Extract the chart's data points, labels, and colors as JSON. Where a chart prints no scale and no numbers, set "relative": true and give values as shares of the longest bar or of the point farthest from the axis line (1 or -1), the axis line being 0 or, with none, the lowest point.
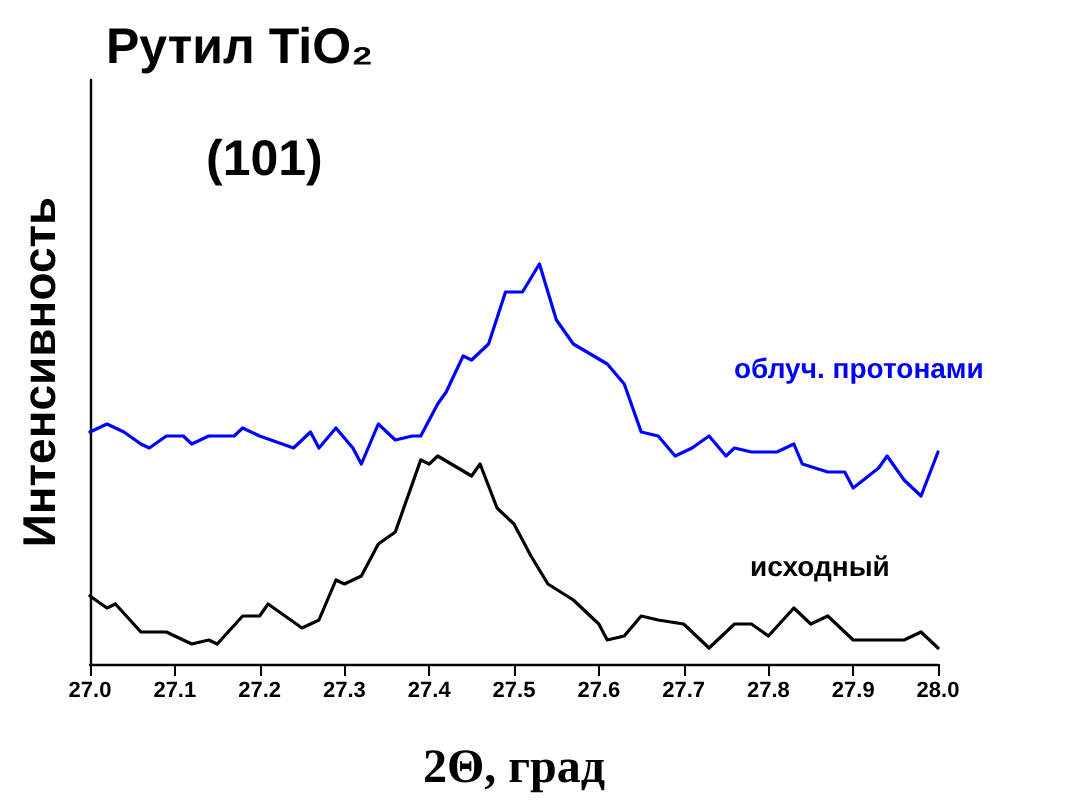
{
  "chart_data": {
    "type": "line",
    "title": "Рутил TiO₂",
    "subtitle": "(101)",
    "xlabel": "2Θ, град",
    "ylabel": "Интенсивность",
    "relative": true,
    "xlim": [
      27,
      28
    ],
    "xticks": [
      {
        "value": 27,
        "label": "27.0"
      },
      {
        "value": 27.1,
        "label": "27.1"
      },
      {
        "value": 27.2,
        "label": "27.2"
      },
      {
        "value": 27.3,
        "label": "27.3"
      },
      {
        "value": 27.4,
        "label": "27.4"
      },
      {
        "value": 27.5,
        "label": "27.5"
      },
      {
        "value": 27.6,
        "label": "27.6"
      },
      {
        "value": 27.7,
        "label": "27.7"
      },
      {
        "value": 27.8,
        "label": "27.8"
      },
      {
        "value": 27.9,
        "label": "27.9"
      },
      {
        "value": 28,
        "label": "28.0"
      }
    ],
    "grid": false,
    "legend": false,
    "marker": "none",
    "line_style": "solid",
    "series": [
      {
        "name": "облуч. протонами",
        "color": "#0000ff",
        "x": [
          27.0,
          27.02,
          27.04,
          27.06,
          27.07,
          27.09,
          27.11,
          27.12,
          27.14,
          27.17,
          27.18,
          27.2,
          27.24,
          27.26,
          27.27,
          27.29,
          27.31,
          27.32,
          27.34,
          27.36,
          27.38,
          27.39,
          27.41,
          27.42,
          27.44,
          27.45,
          27.47,
          27.49,
          27.51,
          27.53,
          27.55,
          27.57,
          27.61,
          27.63,
          27.65,
          27.67,
          27.69,
          27.71,
          27.73,
          27.75,
          27.76,
          27.78,
          27.81,
          27.83,
          27.84,
          27.87,
          27.89,
          27.9,
          27.93,
          27.94,
          27.96,
          27.98,
          28.0
        ],
        "values": [
          0.58,
          0.6,
          0.58,
          0.55,
          0.54,
          0.57,
          0.57,
          0.55,
          0.57,
          0.57,
          0.59,
          0.57,
          0.54,
          0.58,
          0.54,
          0.59,
          0.54,
          0.5,
          0.6,
          0.56,
          0.57,
          0.57,
          0.65,
          0.68,
          0.77,
          0.76,
          0.8,
          0.93,
          0.93,
          1.0,
          0.86,
          0.8,
          0.75,
          0.7,
          0.58,
          0.57,
          0.52,
          0.54,
          0.57,
          0.52,
          0.54,
          0.53,
          0.53,
          0.55,
          0.5,
          0.48,
          0.48,
          0.44,
          0.49,
          0.52,
          0.46,
          0.42,
          0.53
        ]
      },
      {
        "name": "исходный",
        "color": "#000000",
        "x": [
          27.0,
          27.02,
          27.03,
          27.06,
          27.09,
          27.12,
          27.14,
          27.15,
          27.18,
          27.2,
          27.21,
          27.25,
          27.27,
          27.29,
          27.3,
          27.32,
          27.34,
          27.36,
          27.39,
          27.4,
          27.41,
          27.45,
          27.46,
          27.48,
          27.5,
          27.52,
          27.54,
          27.57,
          27.6,
          27.61,
          27.63,
          27.65,
          27.67,
          27.7,
          27.73,
          27.76,
          27.78,
          27.8,
          27.83,
          27.85,
          27.87,
          27.9,
          27.93,
          27.96,
          27.98,
          28.0
        ],
        "values": [
          0.17,
          0.14,
          0.15,
          0.08,
          0.08,
          0.05,
          0.06,
          0.05,
          0.12,
          0.12,
          0.15,
          0.09,
          0.11,
          0.21,
          0.2,
          0.22,
          0.3,
          0.33,
          0.51,
          0.5,
          0.52,
          0.47,
          0.5,
          0.39,
          0.35,
          0.27,
          0.2,
          0.16,
          0.1,
          0.06,
          0.07,
          0.12,
          0.11,
          0.1,
          0.04,
          0.1,
          0.1,
          0.07,
          0.14,
          0.1,
          0.12,
          0.06,
          0.06,
          0.06,
          0.08,
          0.04
        ]
      }
    ]
  }
}
